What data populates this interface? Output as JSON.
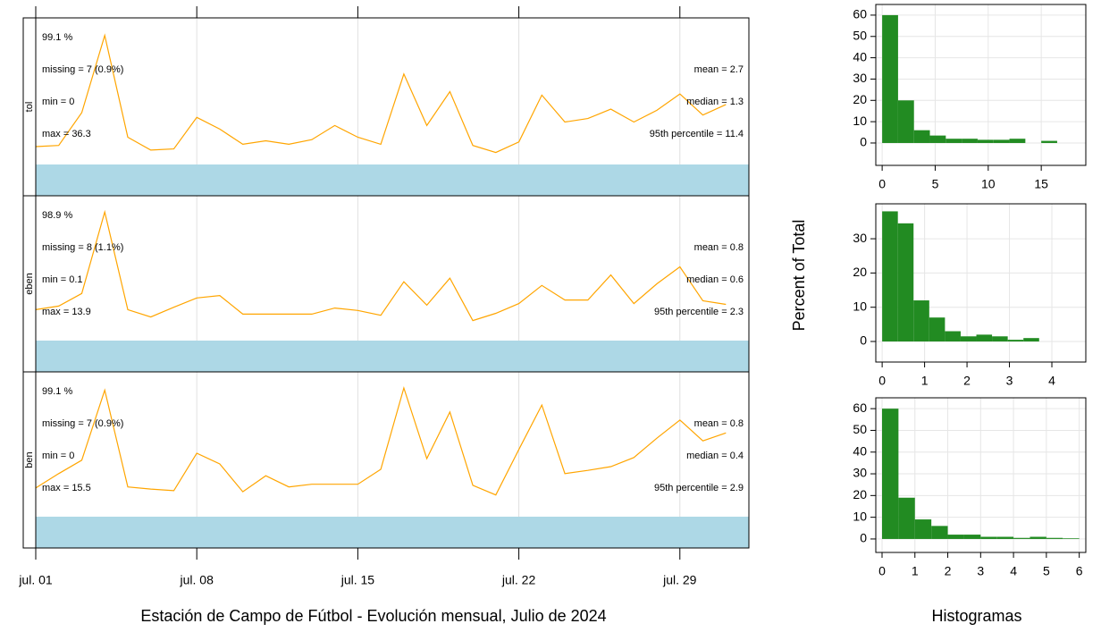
{
  "time_axis": {
    "xlim": [
      1,
      32
    ],
    "xticks": [
      {
        "value": 1,
        "label": "jul. 01"
      },
      {
        "value": 8,
        "label": "jul. 08"
      },
      {
        "value": 15,
        "label": "jul. 15"
      },
      {
        "value": 22,
        "label": "jul. 22"
      },
      {
        "value": 29,
        "label": "jul. 29"
      }
    ],
    "xlabel": "Estación de Campo de Fútbol - Evolución mensual, Julio de 2024"
  },
  "histogram_axis": {
    "ylabel": "Percent of Total",
    "xlabel": "Histogramas"
  },
  "chart_data": [
    {
      "type": "line",
      "strip": "tol",
      "color": "#ffa500",
      "capture_color": "#228b22",
      "capture_bar_color": "#add8e6",
      "x": [
        1,
        2,
        3,
        4,
        5,
        6,
        7,
        8,
        9,
        10,
        11,
        12,
        13,
        14,
        15,
        16,
        17,
        18,
        19,
        20,
        21,
        22,
        23,
        24,
        25,
        26,
        27,
        28,
        29,
        30,
        31
      ],
      "values": [
        0.7,
        0.8,
        3.6,
        10.2,
        1.5,
        0.4,
        0.5,
        3.2,
        2.2,
        0.9,
        1.2,
        0.9,
        1.3,
        2.5,
        1.5,
        0.9,
        6.9,
        2.5,
        5.4,
        0.8,
        0.2,
        1.1,
        5.1,
        2.8,
        3.1,
        3.9,
        2.8,
        3.8,
        5.2,
        3.4,
        4.3
      ],
      "ylim": [
        -3.5,
        11.7
      ],
      "capture": "99.1 %",
      "stats_left": [
        "missing = 7 (0.9%)",
        "min = 0",
        "max = 36.3"
      ],
      "stats_right": [
        "mean = 2.7",
        "median = 1.3",
        "95th percentile = 11.4"
      ]
    },
    {
      "type": "line",
      "strip": "eben",
      "color": "#ffa500",
      "capture_color": "#228b22",
      "capture_bar_color": "#add8e6",
      "x": [
        1,
        2,
        3,
        4,
        5,
        6,
        7,
        8,
        9,
        10,
        11,
        12,
        13,
        14,
        15,
        16,
        17,
        18,
        19,
        20,
        21,
        22,
        23,
        24,
        25,
        26,
        27,
        28,
        29,
        30,
        31
      ],
      "values": [
        0.58,
        0.67,
        0.98,
        3.0,
        0.58,
        0.4,
        0.64,
        0.87,
        0.93,
        0.47,
        0.47,
        0.47,
        0.47,
        0.62,
        0.56,
        0.44,
        1.27,
        0.69,
        1.36,
        0.31,
        0.49,
        0.73,
        1.18,
        0.82,
        0.82,
        1.44,
        0.73,
        1.22,
        1.64,
        0.8,
        0.71
      ],
      "ylim": [
        -0.96,
        3.4
      ],
      "capture": "98.9 %",
      "stats_left": [
        "missing = 8 (1.1%)",
        "min = 0.1",
        "max = 13.9"
      ],
      "stats_right": [
        "mean = 0.8",
        "median = 0.6",
        "95th percentile = 2.3"
      ]
    },
    {
      "type": "line",
      "strip": "ben",
      "color": "#ffa500",
      "capture_color": "#228b22",
      "capture_bar_color": "#add8e6",
      "x": [
        1,
        2,
        3,
        4,
        5,
        6,
        7,
        8,
        9,
        10,
        11,
        12,
        13,
        14,
        15,
        16,
        17,
        18,
        19,
        20,
        21,
        22,
        23,
        24,
        25,
        26,
        27,
        28,
        29,
        30,
        31
      ],
      "values": [
        0.15,
        0.42,
        0.67,
        1.98,
        0.17,
        0.13,
        0.1,
        0.8,
        0.6,
        0.08,
        0.38,
        0.17,
        0.22,
        0.22,
        0.22,
        0.5,
        2.02,
        0.7,
        1.57,
        0.2,
        0.02,
        0.87,
        1.7,
        0.42,
        0.48,
        0.55,
        0.72,
        1.08,
        1.42,
        1.03,
        1.18
      ],
      "ylim": [
        -0.97,
        2.32
      ],
      "capture": "99.1 %",
      "stats_left": [
        "missing = 7 (0.9%)",
        "min = 0",
        "max = 15.5"
      ],
      "stats_right": [
        "mean = 0.8",
        "median = 0.4",
        "95th percentile = 2.9"
      ]
    },
    {
      "type": "histogram",
      "color": "#228b22",
      "grid": true,
      "bins": [
        0,
        1.5,
        3,
        4.5,
        6,
        7.5,
        9,
        10.5,
        12,
        13.5,
        15,
        16.5
      ],
      "values": [
        60,
        20,
        6,
        3.5,
        2,
        2,
        1.5,
        1.5,
        2,
        0,
        1
      ],
      "xlim": [
        -0.6,
        19.2
      ],
      "xticks": [
        0,
        5,
        10,
        15
      ],
      "ylim": [
        -10.5,
        65
      ],
      "yticks": [
        0,
        10,
        20,
        30,
        40,
        50,
        60
      ]
    },
    {
      "type": "histogram",
      "color": "#228b22",
      "grid": true,
      "bins": [
        0,
        0.37,
        0.74,
        1.11,
        1.48,
        1.85,
        2.22,
        2.59,
        2.96,
        3.33,
        3.7
      ],
      "values": [
        38,
        34.5,
        12,
        7,
        3,
        1.5,
        2,
        1.5,
        0.5,
        1
      ],
      "xlim": [
        -0.15,
        4.8
      ],
      "xticks": [
        0,
        1,
        2,
        3,
        4
      ],
      "ylim": [
        -6,
        40.2
      ],
      "yticks": [
        0,
        10,
        20,
        30
      ]
    },
    {
      "type": "histogram",
      "color": "#228b22",
      "grid": true,
      "bins": [
        0,
        0.5,
        1,
        1.5,
        2,
        2.5,
        3,
        3.5,
        4,
        4.5,
        5,
        5.5,
        6
      ],
      "values": [
        60,
        19,
        9,
        6,
        2,
        2,
        1,
        1,
        0.5,
        1,
        0.5,
        0.3
      ],
      "xlim": [
        -0.19,
        6.2
      ],
      "xticks": [
        0,
        1,
        2,
        3,
        4,
        5,
        6
      ],
      "ylim": [
        -6.2,
        65
      ],
      "yticks": [
        0,
        10,
        20,
        30,
        40,
        50,
        60
      ]
    }
  ]
}
